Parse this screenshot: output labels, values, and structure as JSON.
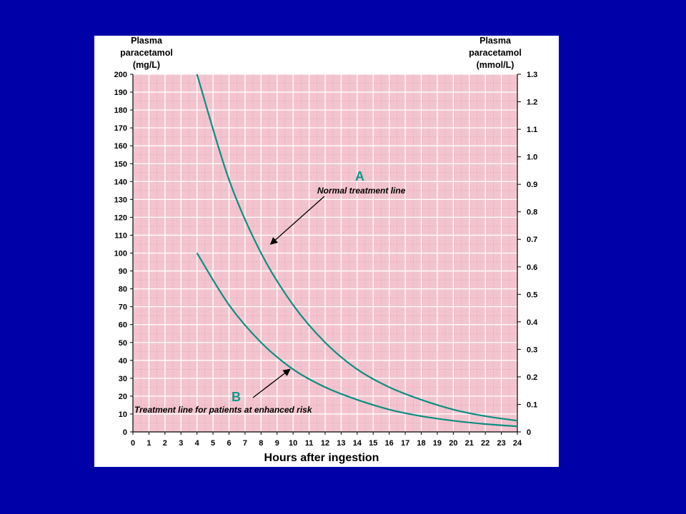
{
  "theme": {
    "background": "#0000a8",
    "panel": "#ffffff",
    "plot_fill": "#f3c4cf",
    "grid_major": "#ffffff",
    "grid_minor": "#e6a6b4",
    "curve": "#0a8f80",
    "label_accent": "#0a9a88"
  },
  "chart_data": {
    "type": "line",
    "left_axis_title": [
      "Plasma",
      "paracetamol",
      "(mg/L)"
    ],
    "right_axis_title": [
      "Plasma",
      "paracetamol",
      "(mmol/L)"
    ],
    "xlabel": "Hours after ingestion",
    "xlim": [
      0,
      24
    ],
    "ylim": [
      0,
      200
    ],
    "y2lim": [
      0,
      1.3
    ],
    "x_ticks": [
      "0",
      "1",
      "2",
      "3",
      "4",
      "5",
      "6",
      "7",
      "8",
      "9",
      "10",
      "11",
      "12",
      "13",
      "14",
      "15",
      "16",
      "17",
      "18",
      "19",
      "20",
      "21",
      "22",
      "23",
      "24"
    ],
    "y_ticks": [
      "0",
      "10",
      "20",
      "30",
      "40",
      "50",
      "60",
      "70",
      "80",
      "90",
      "100",
      "110",
      "120",
      "130",
      "140",
      "150",
      "160",
      "170",
      "180",
      "190",
      "200"
    ],
    "y2_ticks": [
      "0",
      "0.1",
      "0.2",
      "0.3",
      "0.4",
      "0.5",
      "0.6",
      "0.7",
      "0.8",
      "0.9",
      "1.0",
      "1.1",
      "1.2",
      "1.3"
    ],
    "grid": true,
    "series": [
      {
        "name": "Normal treatment line",
        "tag": "A",
        "x": [
          4,
          6,
          8,
          10,
          12,
          14,
          16,
          18,
          20,
          22,
          24
        ],
        "y": [
          200,
          141,
          100,
          71,
          50,
          35,
          25,
          18,
          12.5,
          8.8,
          6.25
        ]
      },
      {
        "name": "Treatment line for patients at enhanced risk",
        "tag": "B",
        "x": [
          4,
          6,
          8,
          10,
          12,
          14,
          16,
          18,
          20,
          22,
          24
        ],
        "y": [
          100,
          71,
          50,
          35,
          25,
          18,
          12.5,
          8.8,
          6.25,
          4.4,
          3.1
        ]
      }
    ],
    "annotations": [
      {
        "tag": "A",
        "text": "Normal treatment line",
        "arrow_to": [
          8.6,
          105
        ]
      },
      {
        "tag": "B",
        "text": "Treatment line for patients at enhanced risk",
        "arrow_to": [
          9.8,
          35
        ]
      }
    ]
  }
}
